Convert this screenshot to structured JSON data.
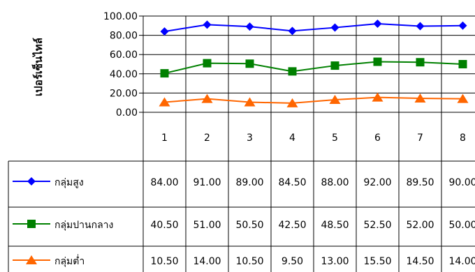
{
  "chart_data": {
    "type": "line",
    "ylabel": "เปอร์เซ็นไทล์",
    "ylim": [
      0,
      100
    ],
    "yticks": [
      "100.00",
      "80.00",
      "60.00",
      "40.00",
      "20.00",
      "0.00"
    ],
    "categories": [
      "1",
      "2",
      "3",
      "4",
      "5",
      "6",
      "7",
      "8"
    ],
    "grid": true,
    "legend_position": "data-table-left",
    "series": [
      {
        "name": "กลุ่มสูง",
        "marker": "diamond",
        "color": "#0000ff",
        "values": [
          84.0,
          91.0,
          89.0,
          84.5,
          88.0,
          92.0,
          89.5,
          90.0
        ],
        "labels": [
          "84.00",
          "91.00",
          "89.00",
          "84.50",
          "88.00",
          "92.00",
          "89.50",
          "90.00"
        ]
      },
      {
        "name": "กลุ่มปานกลาง",
        "marker": "square",
        "color": "#008000",
        "values": [
          40.5,
          51.0,
          50.5,
          42.5,
          48.5,
          52.5,
          52.0,
          50.0
        ],
        "labels": [
          "40.50",
          "51.00",
          "50.50",
          "42.50",
          "48.50",
          "52.50",
          "52.00",
          "50.00"
        ]
      },
      {
        "name": "กลุ่มต่ำ",
        "marker": "triangle",
        "color": "#ff6600",
        "values": [
          10.5,
          14.0,
          10.5,
          9.5,
          13.0,
          15.5,
          14.5,
          14.0
        ],
        "labels": [
          "10.50",
          "14.00",
          "10.50",
          "9.50",
          "13.00",
          "15.50",
          "14.50",
          "14.00"
        ]
      }
    ]
  }
}
